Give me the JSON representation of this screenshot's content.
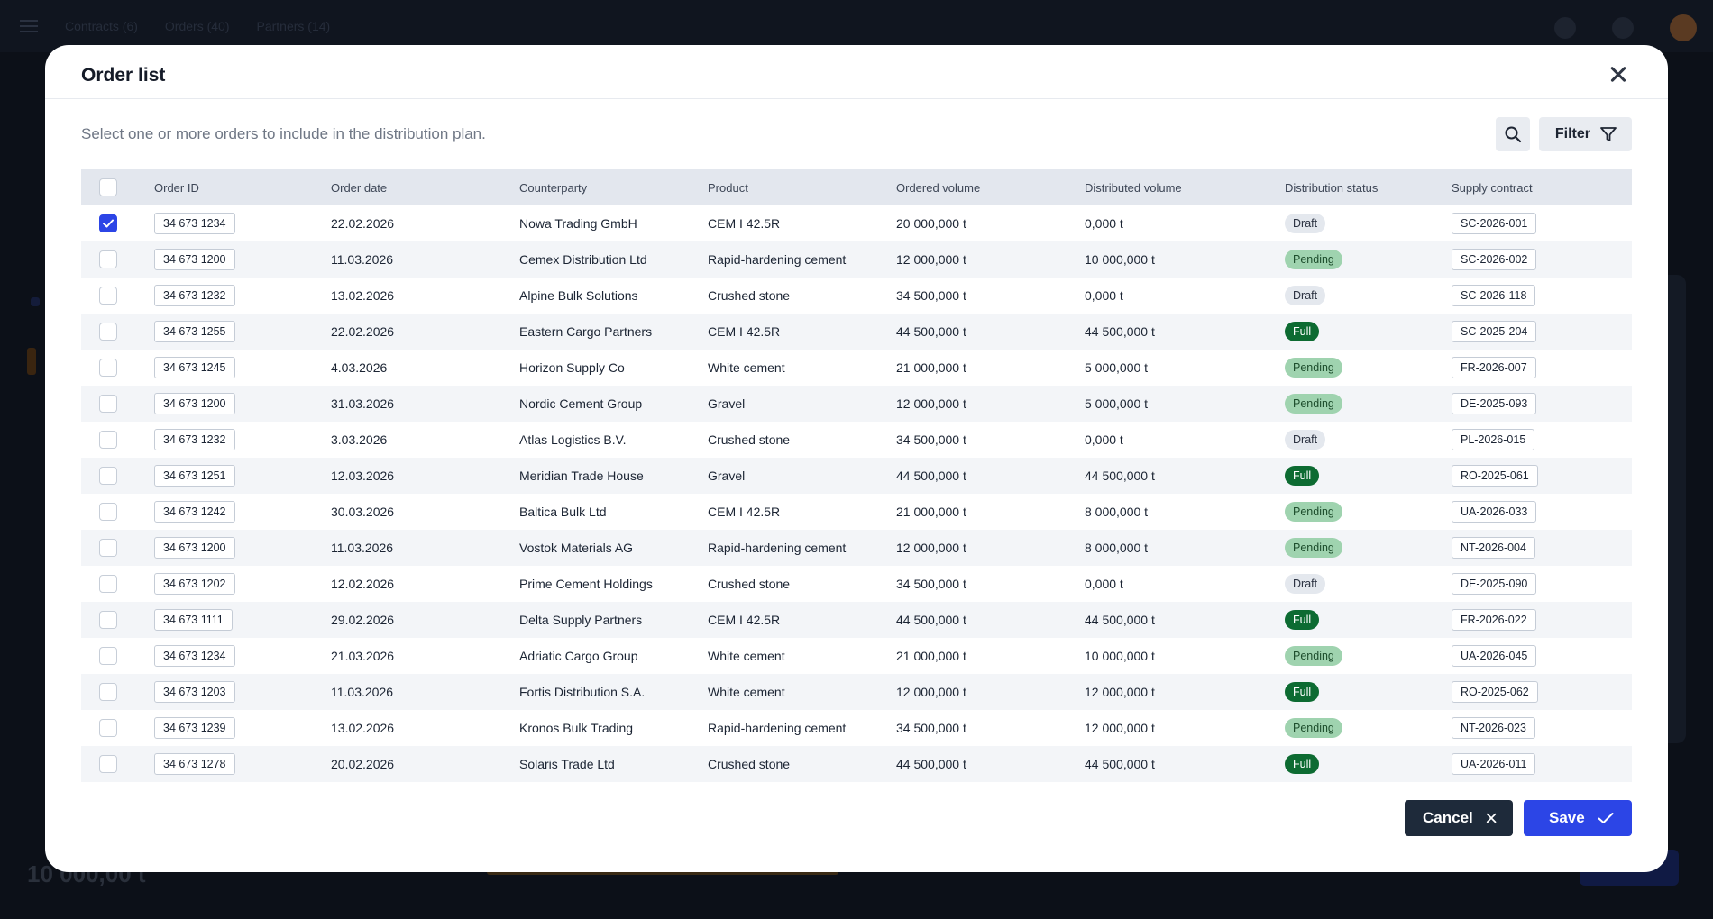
{
  "background": {
    "tabs": [
      "Contracts (6)",
      "Orders (40)",
      "Partners (14)"
    ],
    "bottom_value": "10 000,00 t"
  },
  "modal": {
    "title": "Order list",
    "subtitle": "Select one or more orders to include in the distribution plan.",
    "filter_label": "Filter",
    "cancel_label": "Cancel",
    "save_label": "Save"
  },
  "table": {
    "columns": [
      "Order ID",
      "Order date",
      "Counterparty",
      "Product",
      "Ordered volume",
      "Distributed volume",
      "Distribution status",
      "Supply contract"
    ],
    "rows": [
      {
        "checked": true,
        "id": "34 673 1234",
        "date": "22.02.2026",
        "counterparty": "Nowa Trading GmbH",
        "product": "CEM I 42.5R",
        "ordered": "20 000,000 t",
        "distributed": "0,000 t",
        "status": "Draft",
        "contract": "SC-2026-001"
      },
      {
        "checked": false,
        "id": "34 673 1200",
        "date": "11.03.2026",
        "counterparty": "Cemex Distribution Ltd",
        "product": "Rapid-hardening cement",
        "ordered": "12 000,000 t",
        "distributed": "10 000,000 t",
        "status": "Pending",
        "contract": "SC-2026-002"
      },
      {
        "checked": false,
        "id": "34 673 1232",
        "date": "13.02.2026",
        "counterparty": "Alpine Bulk Solutions",
        "product": "Crushed stone",
        "ordered": "34 500,000 t",
        "distributed": "0,000 t",
        "status": "Draft",
        "contract": "SC-2026-118"
      },
      {
        "checked": false,
        "id": "34 673 1255",
        "date": "22.02.2026",
        "counterparty": "Eastern Cargo Partners",
        "product": "CEM I 42.5R",
        "ordered": "44 500,000 t",
        "distributed": "44 500,000 t",
        "status": "Full",
        "contract": "SC-2025-204"
      },
      {
        "checked": false,
        "id": "34 673 1245",
        "date": "4.03.2026",
        "counterparty": "Horizon Supply Co",
        "product": "White cement",
        "ordered": "21 000,000 t",
        "distributed": "5 000,000 t",
        "status": "Pending",
        "contract": "FR-2026-007"
      },
      {
        "checked": false,
        "id": "34 673 1200",
        "date": "31.03.2026",
        "counterparty": "Nordic Cement Group",
        "product": "Gravel",
        "ordered": "12 000,000 t",
        "distributed": "5 000,000 t",
        "status": "Pending",
        "contract": "DE-2025-093"
      },
      {
        "checked": false,
        "id": "34 673 1232",
        "date": "3.03.2026",
        "counterparty": "Atlas Logistics B.V.",
        "product": "Crushed stone",
        "ordered": "34 500,000 t",
        "distributed": "0,000 t",
        "status": "Draft",
        "contract": "PL-2026-015"
      },
      {
        "checked": false,
        "id": "34 673 1251",
        "date": "12.03.2026",
        "counterparty": "Meridian Trade House",
        "product": "Gravel",
        "ordered": "44 500,000 t",
        "distributed": "44 500,000 t",
        "status": "Full",
        "contract": "RO-2025-061"
      },
      {
        "checked": false,
        "id": "34 673 1242",
        "date": "30.03.2026",
        "counterparty": "Baltica Bulk Ltd",
        "product": "CEM I 42.5R",
        "ordered": "21 000,000 t",
        "distributed": "8 000,000 t",
        "status": "Pending",
        "contract": "UA-2026-033"
      },
      {
        "checked": false,
        "id": "34 673 1200",
        "date": "11.03.2026",
        "counterparty": "Vostok Materials AG",
        "product": "Rapid-hardening cement",
        "ordered": "12 000,000 t",
        "distributed": "8 000,000 t",
        "status": "Pending",
        "contract": "NT-2026-004"
      },
      {
        "checked": false,
        "id": "34 673 1202",
        "date": "12.02.2026",
        "counterparty": "Prime Cement Holdings",
        "product": "Crushed stone",
        "ordered": "34 500,000 t",
        "distributed": "0,000 t",
        "status": "Draft",
        "contract": "DE-2025-090"
      },
      {
        "checked": false,
        "id": "34 673 1111",
        "date": "29.02.2026",
        "counterparty": "Delta Supply Partners",
        "product": "CEM I 42.5R",
        "ordered": "44 500,000 t",
        "distributed": "44 500,000 t",
        "status": "Full",
        "contract": "FR-2026-022"
      },
      {
        "checked": false,
        "id": "34 673 1234",
        "date": "21.03.2026",
        "counterparty": "Adriatic Cargo Group",
        "product": "White cement",
        "ordered": "21 000,000 t",
        "distributed": "10 000,000 t",
        "status": "Pending",
        "contract": "UA-2026-045"
      },
      {
        "checked": false,
        "id": "34 673 1203",
        "date": "11.03.2026",
        "counterparty": "Fortis Distribution S.A.",
        "product": "White cement",
        "ordered": "12 000,000 t",
        "distributed": "12 000,000 t",
        "status": "Full",
        "contract": "RO-2025-062"
      },
      {
        "checked": false,
        "id": "34 673 1239",
        "date": "13.02.2026",
        "counterparty": "Kronos Bulk Trading",
        "product": "Rapid-hardening cement",
        "ordered": "34 500,000 t",
        "distributed": "12 000,000 t",
        "status": "Pending",
        "contract": "NT-2026-023"
      },
      {
        "checked": false,
        "id": "34 673 1278",
        "date": "20.02.2026",
        "counterparty": "Solaris Trade Ltd",
        "product": "Crushed stone",
        "ordered": "44 500,000 t",
        "distributed": "44 500,000 t",
        "status": "Full",
        "contract": "UA-2026-011"
      }
    ]
  },
  "colors": {
    "accent": "#2c45e6",
    "status_draft": "#e4e8ee",
    "status_pending": "#9fd3af",
    "status_full": "#0d6b32",
    "cancel_button": "#1e2a3a"
  }
}
